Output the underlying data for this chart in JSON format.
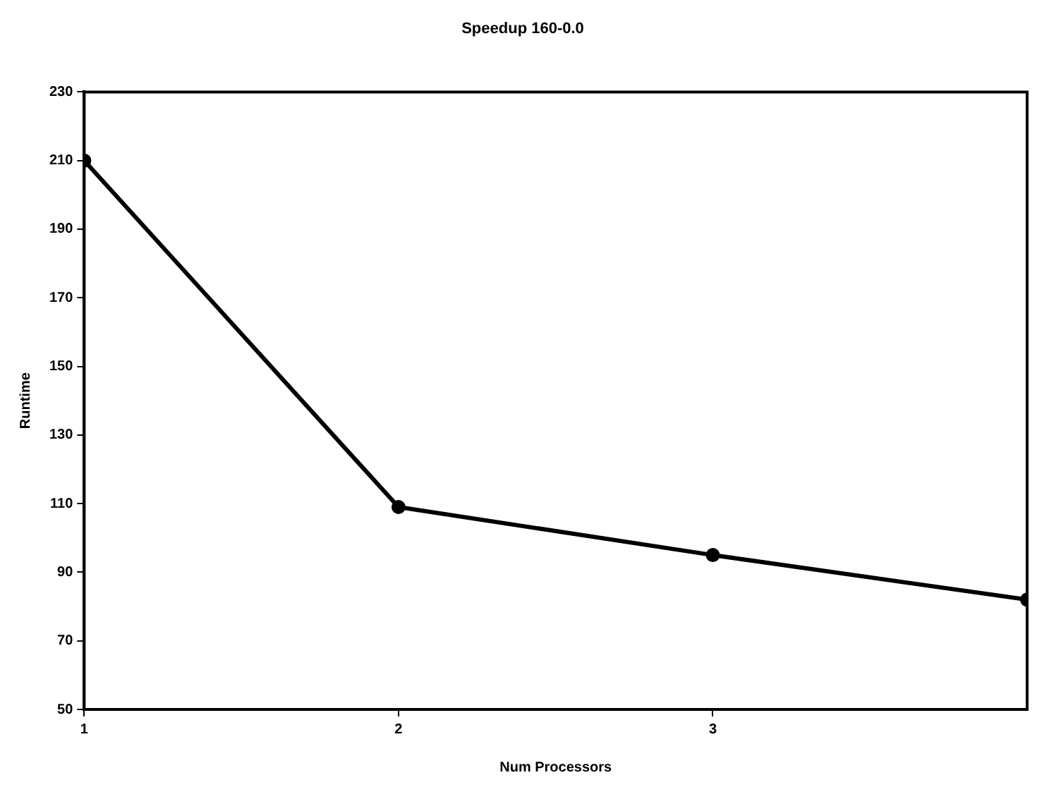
{
  "chart_data": {
    "type": "line",
    "title": "Speedup 160-0.0",
    "xlabel": "Num Processors",
    "ylabel": "Runtime",
    "x": [
      1,
      2,
      3,
      4
    ],
    "series": [
      {
        "color": "#000000",
        "values": [
          210,
          109,
          95,
          82
        ]
      }
    ],
    "xlim": [
      1,
      4
    ],
    "xticks": [
      1,
      2,
      3
    ],
    "ylim": [
      50,
      230
    ],
    "yticks": [
      50,
      70,
      90,
      110,
      130,
      150,
      170,
      190,
      210,
      230
    ],
    "grid": false,
    "legend": false,
    "marker": "circle",
    "line_style": "solid"
  }
}
